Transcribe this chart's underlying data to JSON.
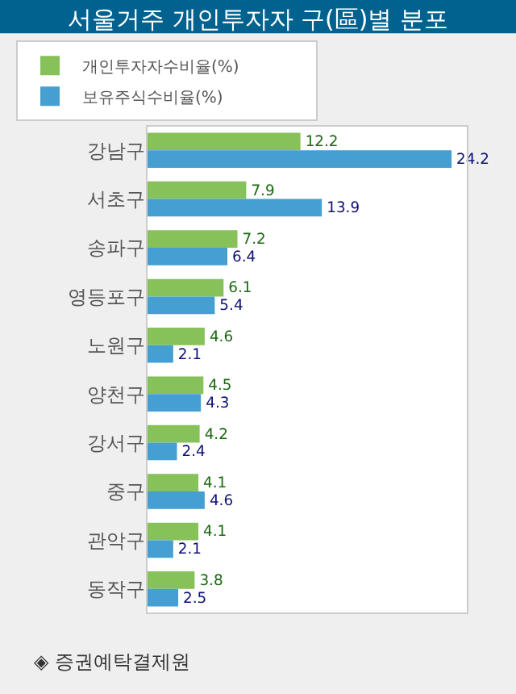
{
  "chart_data": {
    "type": "bar",
    "orientation": "horizontal",
    "title": "서울거주 개인투자자 구(區)별 분포",
    "categories": [
      "강남구",
      "서초구",
      "송파구",
      "영등포구",
      "노원구",
      "양천구",
      "강서구",
      "중구",
      "관악구",
      "동작구"
    ],
    "series": [
      {
        "name": "개인투자자수비율(%)",
        "color": "#86c15a",
        "values": [
          12.2,
          7.9,
          7.2,
          6.1,
          4.6,
          4.5,
          4.2,
          4.1,
          4.1,
          3.8
        ]
      },
      {
        "name": "보유주식수비율(%)",
        "color": "#459fd0",
        "values": [
          24.2,
          13.9,
          6.4,
          5.4,
          2.1,
          4.3,
          2.4,
          4.6,
          2.1,
          2.5
        ]
      }
    ],
    "data_labels": true,
    "legend": "top",
    "grid": false,
    "tick_labels": "y",
    "annotations": [
      "◈ 증권예탁결제원"
    ]
  }
}
